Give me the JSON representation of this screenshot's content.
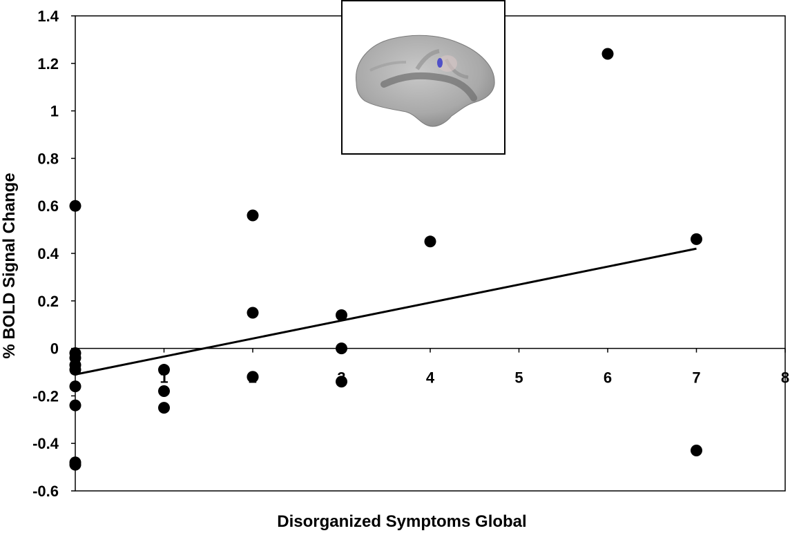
{
  "chart_data": {
    "type": "scatter",
    "xlabel": "Disorganized Symptoms Global",
    "ylabel": "% BOLD Signal Change",
    "xlim": [
      0,
      8
    ],
    "ylim": [
      -0.6,
      1.4
    ],
    "xticks": [
      1,
      2,
      3,
      4,
      5,
      6,
      7,
      8
    ],
    "yticks": [
      -0.6,
      -0.4,
      -0.2,
      0,
      0.2,
      0.4,
      0.6,
      0.8,
      1,
      1.2,
      1.4
    ],
    "xtick_labels": [
      "1",
      "2",
      "3",
      "4",
      "5",
      "6",
      "7",
      "8"
    ],
    "ytick_labels": [
      "-0.6",
      "-0.4",
      "-0.2",
      "0",
      "0.2",
      "0.4",
      "0.6",
      "0.8",
      "1",
      "1.2",
      "1.4"
    ],
    "grid": false,
    "points": [
      {
        "x": 0,
        "y": 0.6
      },
      {
        "x": 0,
        "y": -0.02
      },
      {
        "x": 0,
        "y": -0.04
      },
      {
        "x": 0,
        "y": -0.07
      },
      {
        "x": 0,
        "y": -0.09
      },
      {
        "x": 0,
        "y": -0.16
      },
      {
        "x": 0,
        "y": -0.24
      },
      {
        "x": 0,
        "y": -0.48
      },
      {
        "x": 0,
        "y": -0.49
      },
      {
        "x": 1,
        "y": -0.09
      },
      {
        "x": 1,
        "y": -0.18
      },
      {
        "x": 1,
        "y": -0.25
      },
      {
        "x": 2,
        "y": 0.56
      },
      {
        "x": 2,
        "y": 0.15
      },
      {
        "x": 2,
        "y": -0.12
      },
      {
        "x": 2,
        "y": -0.12
      },
      {
        "x": 3,
        "y": 0.14
      },
      {
        "x": 3,
        "y": 0.0
      },
      {
        "x": 3,
        "y": -0.14
      },
      {
        "x": 4,
        "y": 0.45
      },
      {
        "x": 6,
        "y": 1.24
      },
      {
        "x": 7,
        "y": 0.46
      },
      {
        "x": 7,
        "y": -0.43
      }
    ],
    "trendline": {
      "x": [
        0,
        7
      ],
      "y": [
        -0.11,
        0.42
      ]
    },
    "colors": {
      "point": "#000000",
      "line": "#000000",
      "axis": "#000000"
    }
  },
  "inset": {
    "content": "brain-surface-render",
    "highlight_color": "#5050c8"
  }
}
